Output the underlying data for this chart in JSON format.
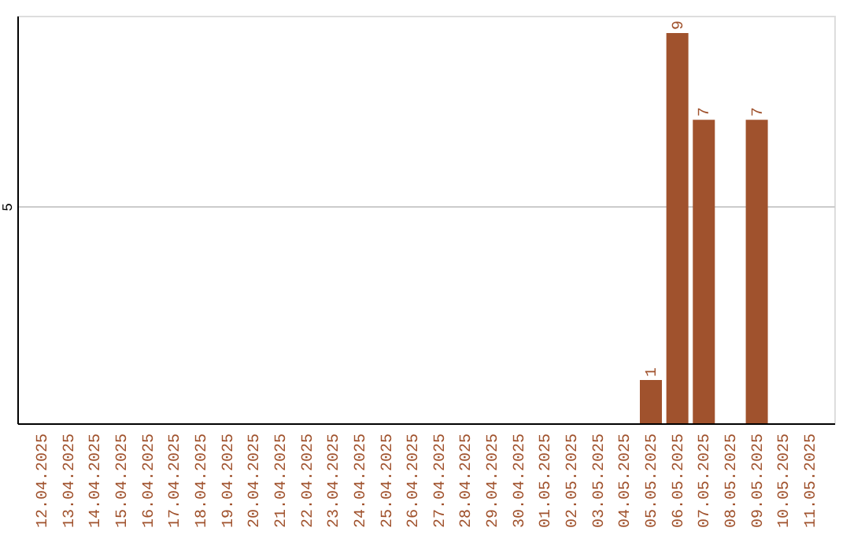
{
  "chart_data": {
    "type": "bar",
    "categories": [
      "12.04.2025",
      "13.04.2025",
      "14.04.2025",
      "15.04.2025",
      "16.04.2025",
      "17.04.2025",
      "18.04.2025",
      "19.04.2025",
      "20.04.2025",
      "21.04.2025",
      "22.04.2025",
      "23.04.2025",
      "24.04.2025",
      "25.04.2025",
      "26.04.2025",
      "27.04.2025",
      "28.04.2025",
      "29.04.2025",
      "30.04.2025",
      "01.05.2025",
      "02.05.2025",
      "03.05.2025",
      "04.05.2025",
      "05.05.2025",
      "06.05.2025",
      "07.05.2025",
      "08.05.2025",
      "09.05.2025",
      "10.05.2025",
      "11.05.2025"
    ],
    "values": [
      null,
      null,
      null,
      null,
      null,
      null,
      null,
      null,
      null,
      null,
      null,
      null,
      null,
      null,
      null,
      null,
      null,
      null,
      null,
      null,
      null,
      null,
      null,
      1,
      9,
      7,
      null,
      7,
      null,
      null
    ],
    "color": "#a0522d",
    "ylim": [
      0,
      9.4
    ],
    "yticks": [
      5
    ],
    "grid": "y",
    "data_labels": true
  }
}
